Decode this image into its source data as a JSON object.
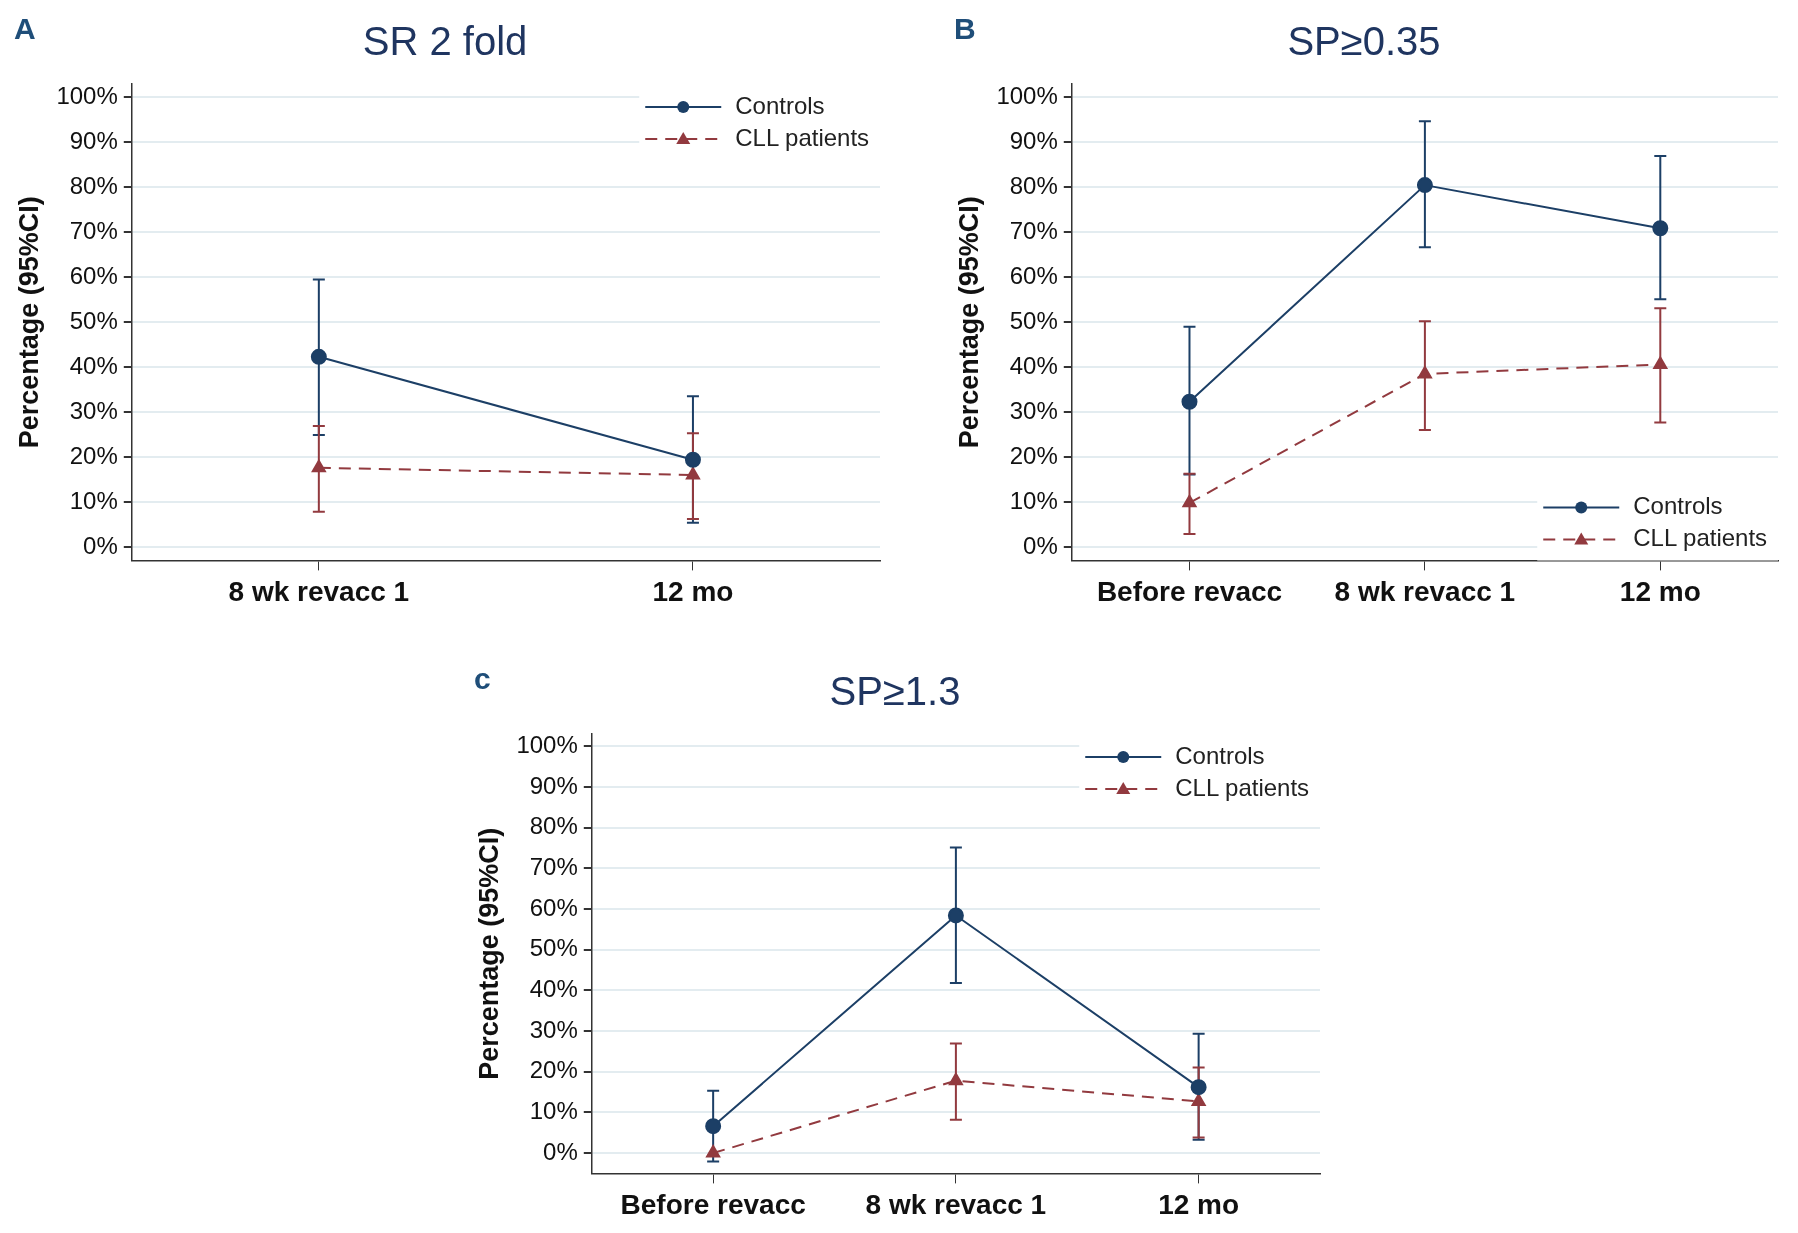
{
  "chart_data": [
    {
      "type": "line",
      "title": "SR 2 fold",
      "ylabel": "Percentage (95%CI)",
      "annotations": [
        "A"
      ],
      "categories": [
        "8 wk revacc 1",
        "12 mo"
      ],
      "ylim": [
        -3,
        103
      ],
      "yticks": [
        {
          "value": 0,
          "label": "0%"
        },
        {
          "value": 10,
          "label": "10%"
        },
        {
          "value": 20,
          "label": "20%"
        },
        {
          "value": 30,
          "label": "30%"
        },
        {
          "value": 40,
          "label": "40%"
        },
        {
          "value": 50,
          "label": "50%"
        },
        {
          "value": 60,
          "label": "60%"
        },
        {
          "value": 70,
          "label": "70%"
        },
        {
          "value": 80,
          "label": "80%"
        },
        {
          "value": 90,
          "label": "90%"
        },
        {
          "value": 100,
          "label": "100%"
        }
      ],
      "grid": "y",
      "legend": "top right",
      "series": [
        {
          "name": "Controls",
          "color": "#1c3f66",
          "marker": "circle",
          "line_style": "solid",
          "values": [
            42.3,
            19.4
          ],
          "errors": [
            [
              24.9,
              59.5
            ],
            [
              5.4,
              33.5
            ]
          ]
        },
        {
          "name": "CLL patients",
          "color": "#923a3f",
          "marker": "triangle",
          "line_style": "dashed",
          "values": [
            17.6,
            16.0
          ],
          "errors": [
            [
              7.8,
              26.9
            ],
            [
              6.2,
              25.3
            ]
          ]
        }
      ]
    },
    {
      "type": "line",
      "title": "SP≥0.35",
      "ylabel": "Percentage (95%CI)",
      "annotations": [
        "B"
      ],
      "categories": [
        "Before revacc",
        "8 wk revacc 1",
        "12 mo"
      ],
      "ylim": [
        -3,
        103
      ],
      "yticks": [
        {
          "value": 0,
          "label": "0%"
        },
        {
          "value": 10,
          "label": "10%"
        },
        {
          "value": 20,
          "label": "20%"
        },
        {
          "value": 30,
          "label": "30%"
        },
        {
          "value": 40,
          "label": "40%"
        },
        {
          "value": 50,
          "label": "50%"
        },
        {
          "value": 60,
          "label": "60%"
        },
        {
          "value": 70,
          "label": "70%"
        },
        {
          "value": 80,
          "label": "80%"
        },
        {
          "value": 90,
          "label": "90%"
        },
        {
          "value": 100,
          "label": "100%"
        }
      ],
      "grid": "y",
      "legend": "bottom right",
      "series": [
        {
          "name": "Controls",
          "color": "#1c3f66",
          "marker": "circle",
          "line_style": "solid",
          "values": [
            32.3,
            80.5,
            70.9
          ],
          "errors": [
            [
              16.1,
              49.0
            ],
            [
              66.7,
              94.7
            ],
            [
              55.1,
              87.0
            ]
          ]
        },
        {
          "name": "CLL patients",
          "color": "#923a3f",
          "marker": "triangle",
          "line_style": "dashed",
          "values": [
            9.8,
            38.5,
            40.6
          ],
          "errors": [
            [
              2.9,
              16.3
            ],
            [
              26.0,
              50.2
            ],
            [
              27.7,
              53.1
            ]
          ]
        }
      ]
    },
    {
      "type": "line",
      "title": "SP≥1.3",
      "ylabel": "Percentage (95%CI)",
      "annotations": [
        "c"
      ],
      "categories": [
        "Before revacc",
        "8 wk revacc 1",
        "12 mo"
      ],
      "ylim": [
        -5,
        103
      ],
      "yticks": [
        {
          "value": 0,
          "label": "0%"
        },
        {
          "value": 10,
          "label": "10%"
        },
        {
          "value": 20,
          "label": "20%"
        },
        {
          "value": 30,
          "label": "30%"
        },
        {
          "value": 40,
          "label": "40%"
        },
        {
          "value": 50,
          "label": "50%"
        },
        {
          "value": 60,
          "label": "60%"
        },
        {
          "value": 70,
          "label": "70%"
        },
        {
          "value": 80,
          "label": "80%"
        },
        {
          "value": 90,
          "label": "90%"
        },
        {
          "value": 100,
          "label": "100%"
        }
      ],
      "grid": "y",
      "legend": "top right",
      "series": [
        {
          "name": "Controls",
          "color": "#1c3f66",
          "marker": "circle",
          "line_style": "solid",
          "values": [
            6.6,
            58.4,
            16.2
          ],
          "errors": [
            [
              -2.1,
              15.3
            ],
            [
              41.8,
              75.1
            ],
            [
              3.3,
              29.3
            ]
          ]
        },
        {
          "name": "CLL patients",
          "color": "#923a3f",
          "marker": "triangle",
          "line_style": "dashed",
          "values": [
            0,
            17.8,
            12.7
          ],
          "errors": [
            null,
            [
              8.2,
              26.9
            ],
            [
              3.8,
              21.0
            ]
          ]
        }
      ]
    }
  ]
}
